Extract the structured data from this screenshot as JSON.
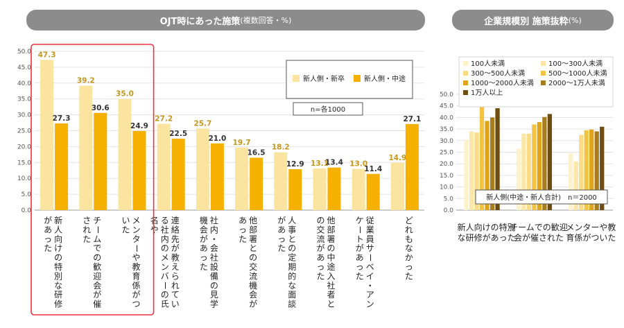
{
  "left_title": "OJT時にあった施策",
  "left_title_note": "(複数回答・%)",
  "right_title": "企業規模別 施策抜粋",
  "right_title_note": "(%)",
  "colors": {
    "new_grad": "#fbe3a0",
    "mid_career": "#f6b000",
    "pill": "#8c8c8c",
    "highlight": "#e8323c"
  },
  "chart_data": [
    {
      "type": "bar",
      "ylim": [
        0,
        50
      ],
      "yticks": [
        "0.0",
        "5.0",
        "10.0",
        "15.0",
        "20.0",
        "25.0",
        "30.0",
        "35.0",
        "40.0",
        "45.0",
        "50.0"
      ],
      "legend": [
        "新人側・新卒",
        "新人側・中途"
      ],
      "n_label": "n=各1000",
      "categories": [
        "新人向けの特別な研修があった",
        "チームでの歓迎会が催された",
        "メンターや教育係がついた",
        "連絡先が教えられている社内のメンバーの氏名や",
        "社内・会社設備の見学機会があった",
        "他部署との交流機会があった",
        "人事との定期的な面談があった",
        "他部署の中途入社者との交流があった",
        "従業員サーベイ・アンケートがあった",
        "どれもなかった"
      ],
      "series": [
        {
          "name": "新人側・新卒",
          "values": [
            47.3,
            39.2,
            35.0,
            27.2,
            25.7,
            19.7,
            18.2,
            13.1,
            13.0,
            14.9
          ],
          "labels": [
            "47.3",
            "39.2",
            "35.0",
            "27.2",
            "25.7",
            "19.7",
            "18.2",
            "13.1",
            "13.0",
            "14.9"
          ]
        },
        {
          "name": "新人側・中途",
          "values": [
            27.3,
            30.6,
            24.9,
            22.5,
            21.0,
            16.5,
            12.9,
            13.4,
            11.4,
            27.1
          ],
          "labels": [
            "27.3",
            "30.6",
            "24.9",
            "22.5",
            "21.0",
            "16.5",
            "12.9",
            "13.4",
            "11.4",
            "27.1"
          ]
        }
      ]
    },
    {
      "type": "bar",
      "ylim": [
        0,
        50
      ],
      "yticks": [
        "0.0",
        "5.0",
        "10.0",
        "15.0",
        "20.0",
        "25.0",
        "30.0",
        "35.0",
        "40.0",
        "45.0",
        "50.0"
      ],
      "legend": [
        "100人未満",
        "100～300人未満",
        "300～500人未満",
        "500～1000人未満",
        "1000～2000人未満",
        "2000～1万人未満",
        "1万人以上"
      ],
      "n_label": "新人側(中途・新人合計)　n＝2000",
      "categories": [
        "新人向けの特別な研修があった",
        "チームでの歓迎会が催された",
        "メンターや教育係がついた"
      ],
      "series_colors": [
        "#fdf2cc",
        "#fbe7a8",
        "#f9dc85",
        "#f2c441",
        "#e0a41a",
        "#a87d1e",
        "#6e4d12"
      ],
      "series": [
        {
          "name": "100人未満",
          "values": [
            30.5,
            26.5,
            24.5
          ]
        },
        {
          "name": "100～300人未満",
          "values": [
            34.0,
            33.0,
            21.0
          ]
        },
        {
          "name": "300～500人未満",
          "values": [
            33.5,
            33.0,
            32.5
          ]
        },
        {
          "name": "500～1000人未満",
          "values": [
            44.5,
            37.0,
            34.5
          ]
        },
        {
          "name": "1000～2000人未満",
          "values": [
            38.5,
            38.0,
            34.8
          ]
        },
        {
          "name": "2000～1万人未満",
          "values": [
            40.0,
            40.2,
            34.0
          ]
        },
        {
          "name": "1万人以上",
          "values": [
            44.0,
            41.5,
            36.0
          ]
        }
      ]
    }
  ]
}
